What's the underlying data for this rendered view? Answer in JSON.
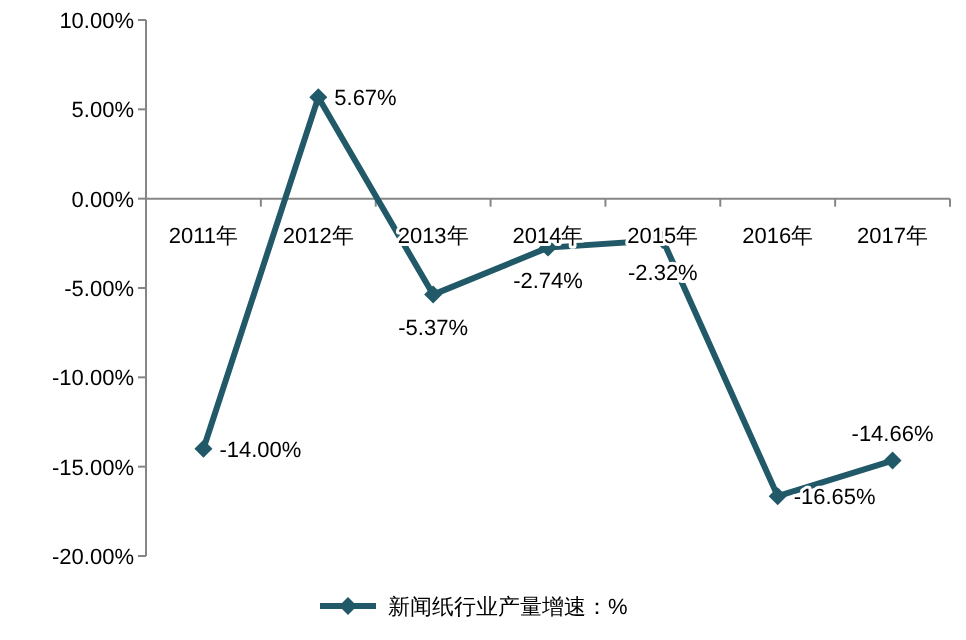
{
  "chart_data": {
    "type": "line",
    "categories": [
      "2011年",
      "2012年",
      "2013年",
      "2014年",
      "2015年",
      "2016年",
      "2017年"
    ],
    "series": [
      {
        "name": "新闻纸行业产量增速：%",
        "color": "#215968",
        "values": [
          -14.0,
          5.67,
          -5.37,
          -2.74,
          -2.32,
          -16.65,
          -14.66
        ],
        "value_labels": [
          "-14.00%",
          "5.67%",
          "-5.37%",
          "-2.74%",
          "-2.32%",
          "-16.65%",
          "-14.66%"
        ]
      }
    ],
    "ylim": [
      -20,
      10
    ],
    "yticks": [
      {
        "value": -20,
        "label": "-20.00%"
      },
      {
        "value": -15,
        "label": "-15.00%"
      },
      {
        "value": -10,
        "label": "-10.00%"
      },
      {
        "value": -5,
        "label": "-5.00%"
      },
      {
        "value": 0,
        "label": "0.00%"
      },
      {
        "value": 5,
        "label": "5.00%"
      },
      {
        "value": 10,
        "label": "10.00%"
      }
    ],
    "marker": "diamond",
    "legend": "bottom",
    "grid": false
  }
}
